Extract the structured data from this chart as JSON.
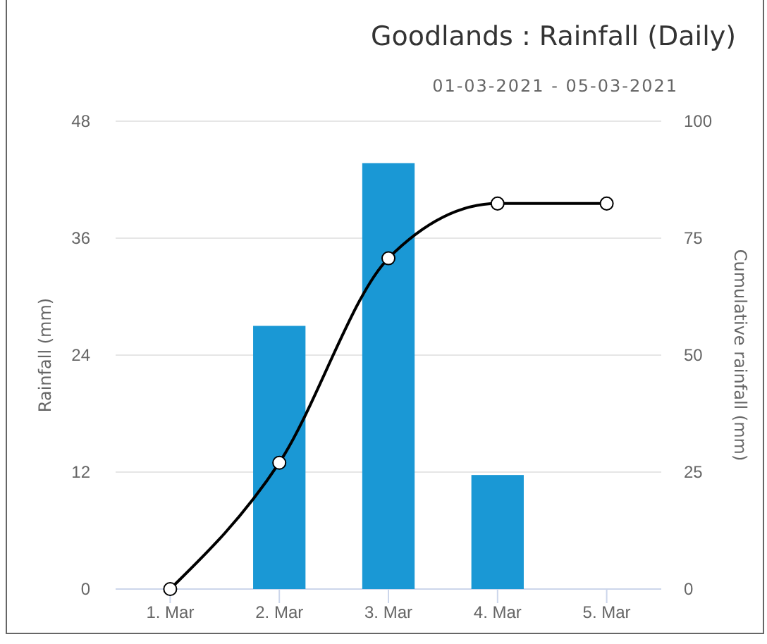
{
  "chart_data": {
    "type": "bar",
    "title": "Goodlands : Rainfall (Daily)",
    "subtitle": "01-03-2021 - 05-03-2021",
    "ylabel": "Rainfall (mm)",
    "y2label": "Cumulative rainfall (mm)",
    "categories": [
      "1. Mar",
      "2. Mar",
      "3. Mar",
      "4. Mar",
      "5. Mar"
    ],
    "series": [
      {
        "color": "#1a98d5",
        "values": [
          0,
          27,
          43.7,
          11.7,
          0
        ]
      },
      {
        "type": "line",
        "axis": "y2",
        "color": "#000000",
        "values": [
          0,
          27,
          70.7,
          82.4,
          82.4
        ]
      }
    ],
    "ylim": [
      0,
      48
    ],
    "yticks": [
      0,
      12,
      24,
      36,
      48
    ],
    "y2lim": [
      0,
      100
    ],
    "y2ticks": [
      0,
      25,
      50,
      75,
      100
    ],
    "grid": "y",
    "marker": "circle",
    "line_style": "solid"
  }
}
